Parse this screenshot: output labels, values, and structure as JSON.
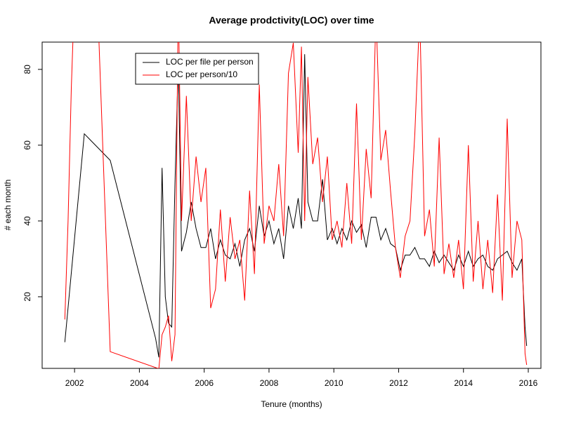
{
  "chart_data": {
    "type": "line",
    "title": "Average prodctivity(LOC) over time",
    "xlabel": "Tenure (months)",
    "ylabel": "# each month",
    "xlim": [
      2001.0,
      2016.39
    ],
    "ylim": [
      1.1,
      87.2
    ],
    "xticks": [
      2002,
      2004,
      2006,
      2008,
      2010,
      2012,
      2014,
      2016
    ],
    "yticks": [
      20,
      40,
      60,
      80
    ],
    "legend": "top-left",
    "series": [
      {
        "name": "LOC per file per person",
        "color": "#000000",
        "x": [
          2001.7,
          2002.3,
          2003.1,
          2004.5,
          2004.6,
          2004.7,
          2004.8,
          2004.9,
          2005.0,
          2005.1,
          2005.2,
          2005.3,
          2005.45,
          2005.6,
          2005.75,
          2005.9,
          2006.05,
          2006.2,
          2006.35,
          2006.5,
          2006.65,
          2006.8,
          2006.95,
          2007.1,
          2007.25,
          2007.4,
          2007.55,
          2007.7,
          2007.85,
          2008.0,
          2008.15,
          2008.3,
          2008.45,
          2008.6,
          2008.75,
          2008.9,
          2009.0,
          2009.1,
          2009.2,
          2009.35,
          2009.5,
          2009.65,
          2009.8,
          2009.95,
          2010.1,
          2010.25,
          2010.4,
          2010.55,
          2010.7,
          2010.85,
          2011.0,
          2011.15,
          2011.3,
          2011.45,
          2011.6,
          2011.75,
          2011.9,
          2012.05,
          2012.2,
          2012.35,
          2012.5,
          2012.65,
          2012.8,
          2012.95,
          2013.1,
          2013.25,
          2013.4,
          2013.55,
          2013.7,
          2013.85,
          2014.0,
          2014.15,
          2014.3,
          2014.45,
          2014.6,
          2014.75,
          2014.9,
          2015.05,
          2015.2,
          2015.35,
          2015.5,
          2015.65,
          2015.8,
          2015.9,
          2015.95
        ],
        "values": [
          8,
          63,
          56,
          9,
          4,
          54,
          20,
          13,
          12,
          50,
          82,
          32,
          37,
          45,
          38,
          33,
          33,
          38,
          30,
          35,
          31,
          30,
          34,
          28,
          35,
          38,
          32,
          44,
          36,
          40,
          34,
          38,
          30,
          44,
          38,
          46,
          38,
          84,
          45,
          40,
          40,
          51,
          35,
          38,
          34,
          38,
          35,
          40,
          37,
          39,
          33,
          41,
          41,
          35,
          38,
          34,
          33,
          27,
          31,
          31,
          33,
          30,
          30,
          28,
          32,
          29,
          31,
          29,
          27,
          31,
          28,
          32,
          28,
          30,
          31,
          28,
          27,
          30,
          31,
          32,
          29,
          27,
          30,
          12,
          7
        ]
      },
      {
        "name": "LOC per person/10",
        "color": "#ff0000",
        "x": [
          2001.7,
          2001.8,
          2001.9,
          2002.0,
          2002.7,
          2003.1,
          2004.6,
          2004.7,
          2004.8,
          2004.9,
          2005.0,
          2005.1,
          2005.2,
          2005.3,
          2005.45,
          2005.6,
          2005.75,
          2005.9,
          2006.05,
          2006.2,
          2006.35,
          2006.5,
          2006.65,
          2006.8,
          2006.95,
          2007.1,
          2007.25,
          2007.4,
          2007.55,
          2007.7,
          2007.85,
          2008.0,
          2008.15,
          2008.3,
          2008.45,
          2008.6,
          2008.75,
          2008.9,
          2009.0,
          2009.1,
          2009.2,
          2009.35,
          2009.5,
          2009.65,
          2009.8,
          2009.95,
          2010.1,
          2010.25,
          2010.4,
          2010.55,
          2010.7,
          2010.85,
          2011.0,
          2011.15,
          2011.3,
          2011.45,
          2011.6,
          2011.75,
          2011.9,
          2012.05,
          2012.2,
          2012.35,
          2012.5,
          2012.65,
          2012.8,
          2012.95,
          2013.1,
          2013.25,
          2013.4,
          2013.55,
          2013.7,
          2013.85,
          2014.0,
          2014.15,
          2014.3,
          2014.45,
          2014.6,
          2014.75,
          2014.9,
          2015.05,
          2015.2,
          2015.35,
          2015.5,
          2015.65,
          2015.8,
          2015.9,
          2015.95
        ],
        "values": [
          14,
          40,
          75,
          100,
          100,
          5.5,
          1,
          10,
          12,
          15,
          3,
          10,
          100,
          40,
          73,
          40,
          57,
          45,
          54,
          17,
          22,
          43,
          24,
          41,
          30,
          35,
          19,
          48,
          26,
          76,
          34,
          44,
          40,
          55,
          36,
          79,
          87,
          58,
          86,
          40,
          78,
          55,
          62,
          45,
          57,
          35,
          40,
          33,
          50,
          34,
          71,
          35,
          59,
          46,
          95,
          56,
          64,
          48,
          33,
          25,
          36,
          40,
          63,
          95,
          36,
          43,
          28,
          62,
          26,
          34,
          25,
          35,
          22,
          60,
          24,
          40,
          22,
          35,
          21,
          47,
          19,
          67,
          25,
          40,
          35,
          5,
          2
        ]
      }
    ]
  }
}
